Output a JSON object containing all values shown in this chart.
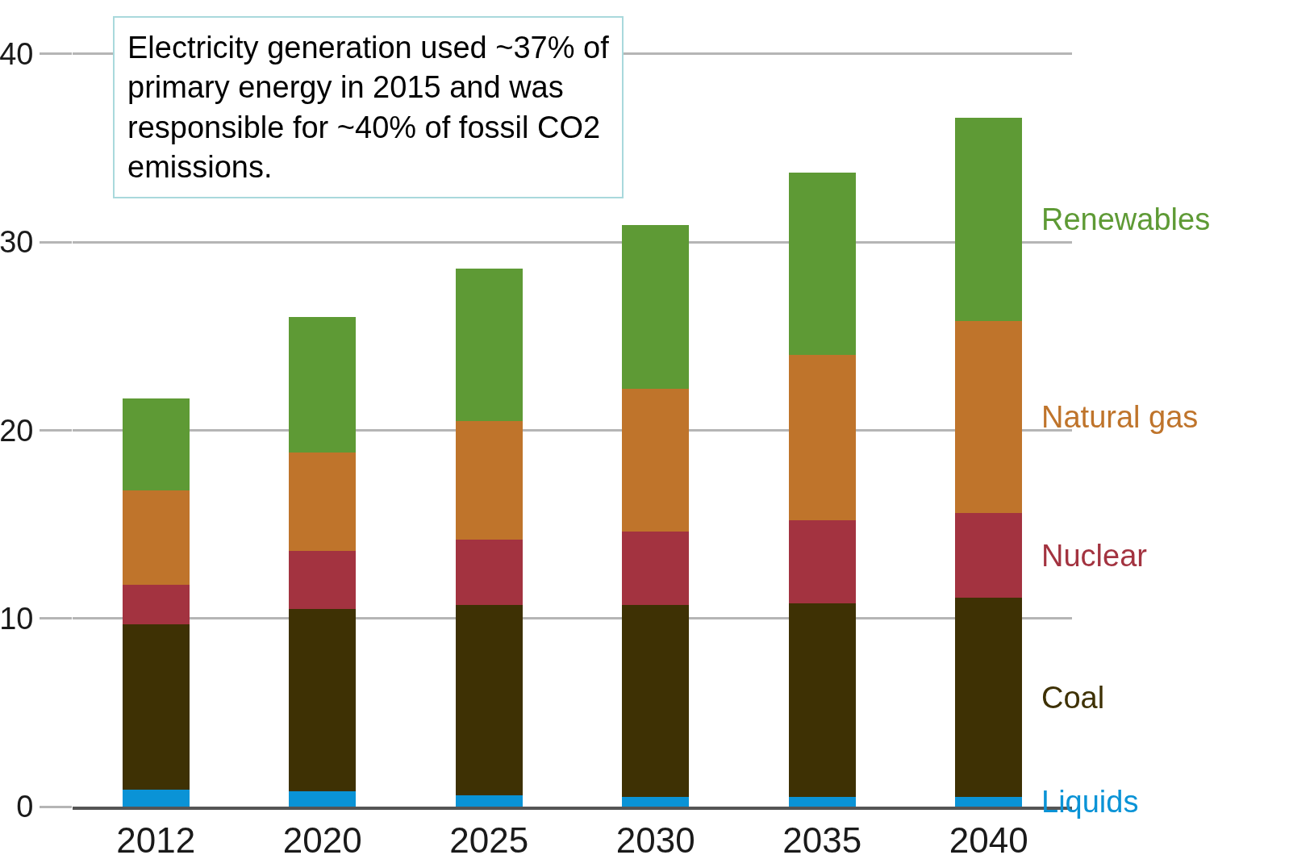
{
  "chart_data": {
    "type": "bar",
    "stacked": true,
    "categories": [
      "2012",
      "2020",
      "2025",
      "2030",
      "2035",
      "2040"
    ],
    "series": [
      {
        "name": "Liquids",
        "color": "#0a93d6",
        "values": [
          0.9,
          0.8,
          0.6,
          0.5,
          0.5,
          0.5
        ]
      },
      {
        "name": "Coal",
        "color": "#3e3104",
        "values": [
          8.8,
          9.7,
          10.1,
          10.2,
          10.3,
          10.6
        ]
      },
      {
        "name": "Nuclear",
        "color": "#a33340",
        "values": [
          2.1,
          3.1,
          3.5,
          3.9,
          4.4,
          4.5
        ]
      },
      {
        "name": "Natural gas",
        "color": "#bf742b",
        "values": [
          5.0,
          5.2,
          6.3,
          7.6,
          8.8,
          10.2
        ]
      },
      {
        "name": "Renewables",
        "color": "#5e9a35",
        "values": [
          4.9,
          7.2,
          8.1,
          8.7,
          9.7,
          10.8
        ]
      }
    ],
    "ylim": [
      0,
      42
    ],
    "yticks": [
      0,
      10,
      20,
      30,
      40
    ],
    "grid": "y",
    "legend": false,
    "annotations": [
      "Electricity generation used ~37% of primary energy in 2015 and was responsible for ~40% of fossil CO2 emissions."
    ]
  }
}
